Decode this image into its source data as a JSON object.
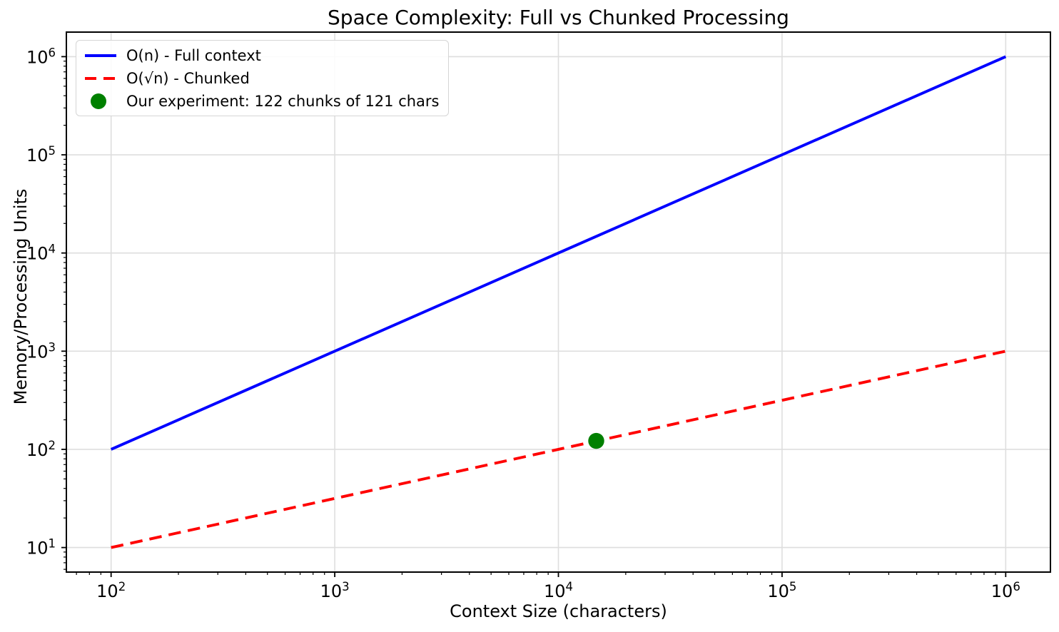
{
  "chart_data": {
    "type": "line",
    "title": "Space Complexity: Full vs Chunked Processing",
    "xlabel": "Context Size (characters)",
    "ylabel": "Memory/Processing Units",
    "x_scale": "log",
    "y_scale": "log",
    "xlim_log10": [
      1.8,
      6.2
    ],
    "ylim_log10": [
      0.75,
      6.25
    ],
    "x_major_ticks": [
      100,
      1000,
      10000,
      100000,
      1000000
    ],
    "y_major_ticks": [
      10,
      100,
      1000,
      10000,
      100000,
      1000000
    ],
    "grid": {
      "which": "major",
      "color": "#dedede"
    },
    "axis_color": "#000000",
    "tick_label_base": "10",
    "legend": {
      "position": "upper-left"
    },
    "series": [
      {
        "name": "O(n) - Full context",
        "type": "line",
        "linestyle": "solid",
        "color": "#0000ff",
        "x": [
          100,
          1000000
        ],
        "y": [
          100,
          1000000
        ]
      },
      {
        "name": "O(√n) - Chunked",
        "type": "line",
        "linestyle": "dashed",
        "color": "#ff0000",
        "x": [
          100,
          1000000
        ],
        "y": [
          10,
          1000
        ]
      },
      {
        "name": "Our experiment: 122 chunks of 121 chars",
        "type": "scatter",
        "color": "#008000",
        "x": [
          14762
        ],
        "y": [
          122
        ]
      }
    ]
  }
}
